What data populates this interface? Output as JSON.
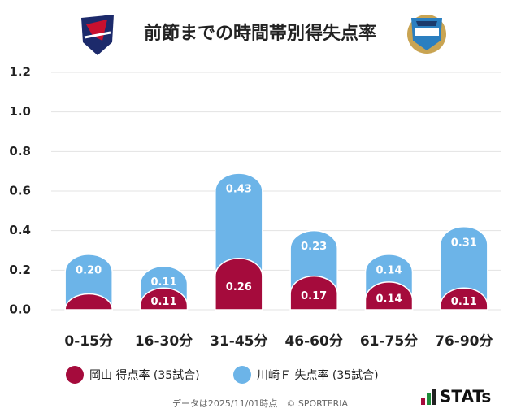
{
  "chart_data": {
    "type": "bar",
    "stacked": true,
    "title": "前節までの時間帯別得失点率",
    "categories": [
      "0-15分",
      "16-30分",
      "31-45分",
      "46-60分",
      "61-75分",
      "76-90分"
    ],
    "series": [
      {
        "name": "岡山 得点率 (35試合)",
        "color": "#a50b3c",
        "values": [
          0.08,
          0.11,
          0.26,
          0.17,
          0.14,
          0.11
        ],
        "value_labels": [
          null,
          "0.11",
          "0.26",
          "0.17",
          "0.14",
          "0.11"
        ]
      },
      {
        "name": "川崎Ｆ 失点率 (35試合)",
        "color": "#6cb4e8",
        "values": [
          0.2,
          0.11,
          0.43,
          0.23,
          0.14,
          0.31
        ],
        "value_labels": [
          "0.20",
          "0.11",
          "0.43",
          "0.23",
          "0.14",
          "0.31"
        ]
      }
    ],
    "ylim": [
      0,
      1.2
    ],
    "yticks": [
      {
        "value": 0,
        "label": "0.0"
      },
      {
        "value": 0.2,
        "label": "0.2"
      },
      {
        "value": 0.4,
        "label": "0.4"
      },
      {
        "value": 0.6,
        "label": "0.6"
      },
      {
        "value": 0.8,
        "label": "0.8"
      },
      {
        "value": 1.0,
        "label": "1.0"
      },
      {
        "value": 1.2,
        "label": "1.2"
      }
    ],
    "grid": true,
    "footnote": "データは2025/11/01時点　© SPORTERIA",
    "brand": "STATs"
  }
}
